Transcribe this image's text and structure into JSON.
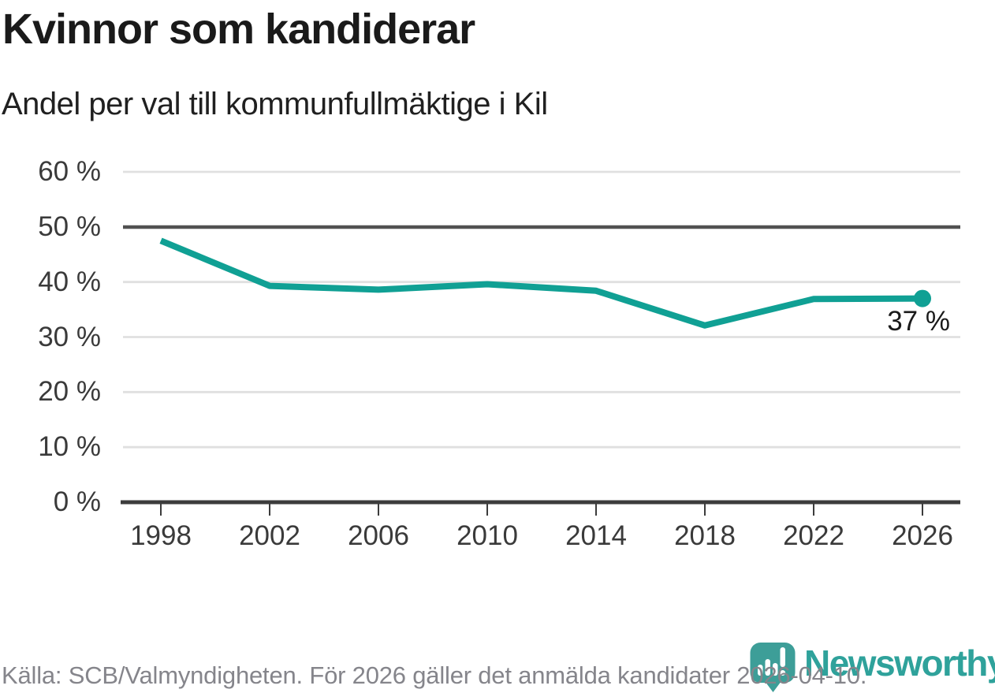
{
  "header": {
    "title": "Kvinnor som kandiderar",
    "subtitle": "Andel per val till kommunfullmäktige i Kil"
  },
  "chart_data": {
    "type": "line",
    "title": "Kvinnor som kandiderar",
    "subtitle": "Andel per val till kommunfullmäktige i Kil",
    "categories": [
      "1998",
      "2002",
      "2006",
      "2010",
      "2014",
      "2018",
      "2022",
      "2026"
    ],
    "values": [
      47.5,
      39.3,
      38.6,
      39.6,
      38.4,
      32.1,
      36.9,
      37
    ],
    "unit": "%",
    "ylim": [
      0,
      60
    ],
    "y_tick_step": 10,
    "y_tick_labels_top_to_bottom": [
      "60 %",
      "50 %",
      "40 %",
      "30 %",
      "20 %",
      "10 %",
      "0 %"
    ],
    "reference_line_value": 50,
    "end_point_label": "37 %",
    "line_color": "#10a094",
    "grid": true,
    "legend": "none"
  },
  "footer": {
    "source_text": "Källa: SCB/Valmyndigheten. För 2026 gäller det anmälda kandidater 2026-04-10.",
    "brand_wordmark": "Newsworthy",
    "brand_color": "#2fa29b"
  }
}
